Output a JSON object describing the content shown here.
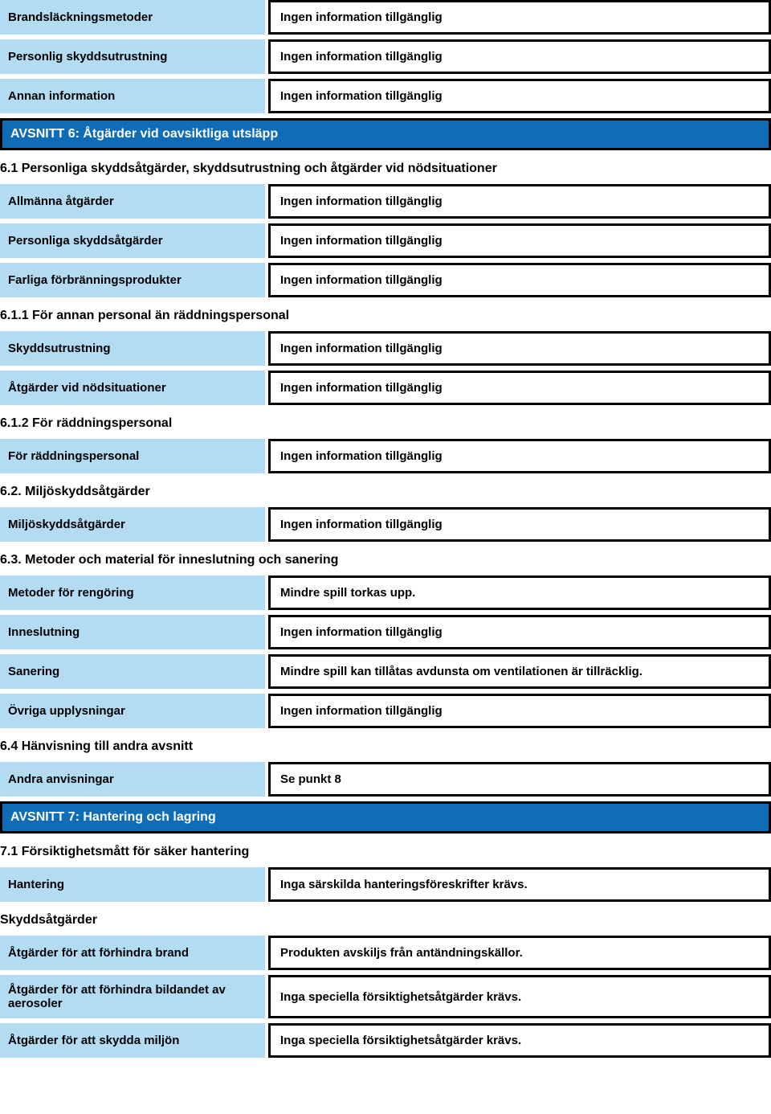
{
  "colors": {
    "label_bg": "#b3dcf3",
    "section_bg": "#0f6cb6",
    "section_text": "#ffffff",
    "border": "#000000",
    "text": "#000000"
  },
  "no_info": "Ingen information tillgänglig",
  "top_rows": [
    {
      "label": "Brandsläckningsmetoder",
      "value": "Ingen information tillgänglig"
    },
    {
      "label": "Personlig skyddsutrustning",
      "value": "Ingen information tillgänglig"
    },
    {
      "label": "Annan information",
      "value": "Ingen information tillgänglig"
    }
  ],
  "section6": {
    "title": "AVSNITT 6: Åtgärder vid oavsiktliga utsläpp",
    "sub1": {
      "heading": "6.1 Personliga skyddsåtgärder, skyddsutrustning och åtgärder vid nödsituationer",
      "rows": [
        {
          "label": "Allmänna åtgärder",
          "value": "Ingen information tillgänglig"
        },
        {
          "label": "Personliga skyddsåtgärder",
          "value": "Ingen information tillgänglig"
        },
        {
          "label": "Farliga förbränningsprodukter",
          "value": "Ingen information tillgänglig"
        }
      ]
    },
    "sub11": {
      "heading": "6.1.1 För annan personal än räddningspersonal",
      "rows": [
        {
          "label": "Skyddsutrustning",
          "value": "Ingen information tillgänglig"
        },
        {
          "label": "Åtgärder vid nödsituationer",
          "value": "Ingen information tillgänglig"
        }
      ]
    },
    "sub12": {
      "heading": "6.1.2 För räddningspersonal",
      "rows": [
        {
          "label": "För räddningspersonal",
          "value": "Ingen information tillgänglig"
        }
      ]
    },
    "sub2": {
      "heading": "6.2. Miljöskyddsåtgärder",
      "rows": [
        {
          "label": "Miljöskyddsåtgärder",
          "value": "Ingen information tillgänglig"
        }
      ]
    },
    "sub3": {
      "heading": "6.3. Metoder och material för inneslutning och sanering",
      "rows": [
        {
          "label": "Metoder för rengöring",
          "value": "Mindre spill torkas upp."
        },
        {
          "label": "Inneslutning",
          "value": "Ingen information tillgänglig"
        },
        {
          "label": "Sanering",
          "value": "Mindre spill kan tillåtas avdunsta om ventilationen är tillräcklig."
        },
        {
          "label": "Övriga upplysningar",
          "value": "Ingen information tillgänglig"
        }
      ]
    },
    "sub4": {
      "heading": "6.4 Hänvisning till andra avsnitt",
      "rows": [
        {
          "label": "Andra anvisningar",
          "value": "Se punkt 8"
        }
      ]
    }
  },
  "section7": {
    "title": "AVSNITT 7: Hantering och lagring",
    "sub1": {
      "heading": "7.1 Försiktighetsmått för säker hantering",
      "rows": [
        {
          "label": "Hantering",
          "value": "Inga särskilda hanteringsföreskrifter krävs."
        }
      ]
    },
    "skydd_heading": "Skyddsåtgärder",
    "skydd_rows": [
      {
        "label": "Åtgärder för att förhindra brand",
        "value": "Produkten avskiljs från antändningskällor."
      },
      {
        "label": "Åtgärder för att förhindra bildandet av aerosoler",
        "value": "Inga speciella försiktighetsåtgärder krävs."
      },
      {
        "label": "Åtgärder för att skydda miljön",
        "value": "Inga speciella försiktighetsåtgärder krävs."
      }
    ]
  }
}
